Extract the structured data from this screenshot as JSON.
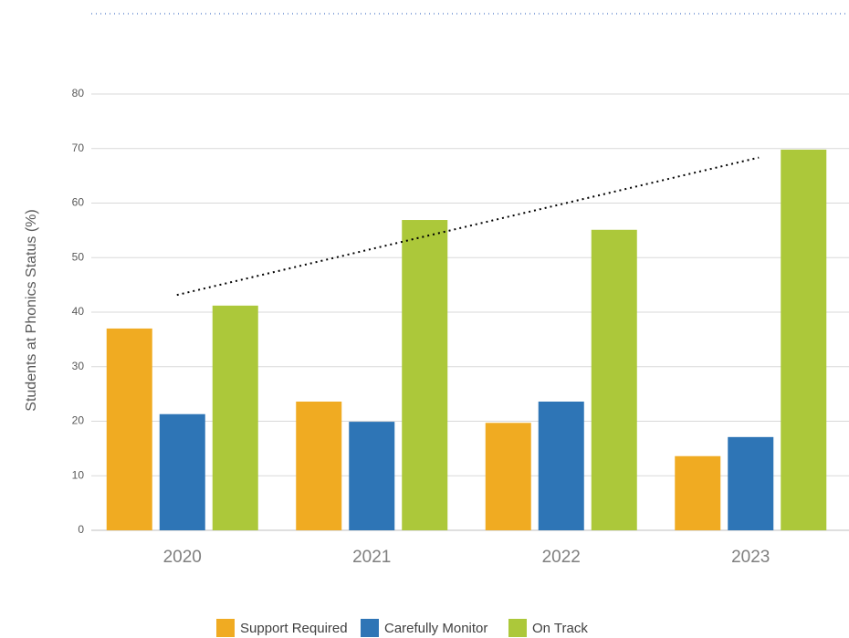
{
  "chart_data": {
    "type": "bar",
    "ylabel": "Students at Phonics Status (%)",
    "categories": [
      "2020",
      "2021",
      "2022",
      "2023"
    ],
    "series": [
      {
        "name": "Support Required",
        "color": "#f0ab22",
        "values": [
          37.0,
          23.6,
          19.7,
          13.6
        ]
      },
      {
        "name": "Carefully Monitor",
        "color": "#2e75b6",
        "values": [
          21.3,
          19.9,
          23.6,
          17.1
        ]
      },
      {
        "name": "On Track",
        "color": "#acc83a",
        "values": [
          41.2,
          56.9,
          55.1,
          69.8
        ],
        "trendline": true
      }
    ],
    "ylim": [
      0,
      80
    ],
    "yticks": [
      0,
      10,
      20,
      30,
      40,
      50,
      60,
      70,
      80
    ],
    "grid": true,
    "legend": "bottom"
  }
}
